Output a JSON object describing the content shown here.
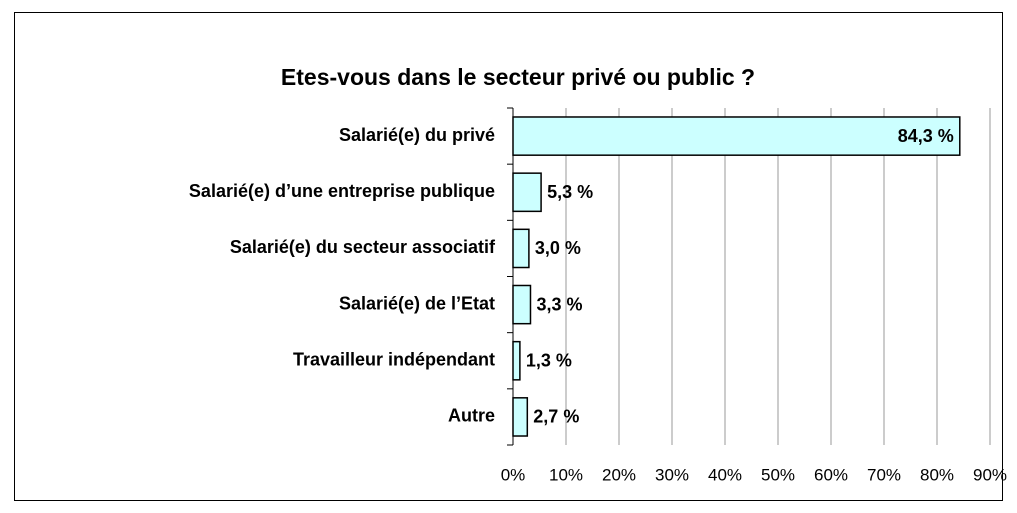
{
  "chart_data": {
    "type": "barh",
    "title": "Etes-vous dans le secteur privé ou public ?",
    "categories": [
      "Salarié(e) du privé",
      "Salarié(e) d’une entreprise publique",
      "Salarié(e) du secteur associatif",
      "Salarié(e) de l’Etat",
      "Travailleur indépendant",
      "Autre"
    ],
    "values": [
      84.3,
      5.3,
      3.0,
      3.3,
      1.3,
      2.7
    ],
    "value_labels": [
      "84,3 %",
      "5,3 %",
      "3,0 %",
      "3,3 %",
      "1,3 %",
      "2,7 %"
    ],
    "color": "#ccffff",
    "xlim": [
      0,
      90
    ],
    "xticks": [
      {
        "value": 0,
        "label": "0%"
      },
      {
        "value": 10,
        "label": "10%"
      },
      {
        "value": 20,
        "label": "20%"
      },
      {
        "value": 30,
        "label": "30%"
      },
      {
        "value": 40,
        "label": "40%"
      },
      {
        "value": 50,
        "label": "50%"
      },
      {
        "value": 60,
        "label": "60%"
      },
      {
        "value": 70,
        "label": "70%"
      },
      {
        "value": 80,
        "label": "80%"
      },
      {
        "value": 90,
        "label": "90%"
      }
    ],
    "grid": true
  }
}
